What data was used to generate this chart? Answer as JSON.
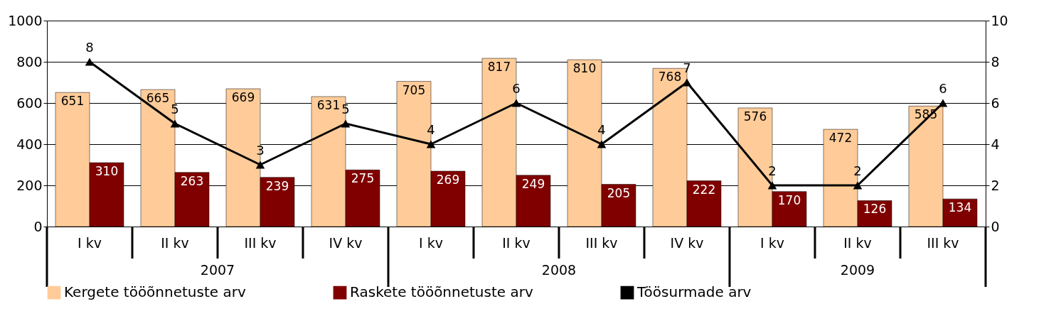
{
  "chart_data": {
    "type": "bar",
    "categories": [
      "I kv",
      "II kv",
      "III kv",
      "IV kv",
      "I kv",
      "II kv",
      "III kv",
      "IV kv",
      "I kv",
      "II kv",
      "III kv"
    ],
    "series": [
      {
        "name": "Kergete tööõnnetuste arv",
        "color": "#ffcc99",
        "values": [
          651,
          665,
          669,
          631,
          705,
          817,
          810,
          768,
          576,
          472,
          585
        ]
      },
      {
        "name": "Raskete tööõnnetuste arv",
        "color": "#800000",
        "values": [
          310,
          263,
          239,
          275,
          269,
          249,
          205,
          222,
          170,
          126,
          134
        ]
      },
      {
        "name": "Töösurmade arv",
        "type": "line",
        "axis": "y2",
        "color": "#000000",
        "values": [
          8,
          5,
          3,
          5,
          4,
          6,
          4,
          7,
          2,
          2,
          6
        ]
      }
    ],
    "annotations": [
      "2007",
      "2008",
      "2009"
    ],
    "ylim": [
      0,
      1000
    ],
    "yticks": [
      0,
      200,
      400,
      600,
      800,
      1000
    ],
    "y2lim": [
      0,
      10
    ],
    "y2ticks": [
      0,
      2,
      4,
      6,
      8,
      10
    ],
    "grid": "y",
    "legend": "bottom",
    "marker": "triangle",
    "data_labels": true
  }
}
